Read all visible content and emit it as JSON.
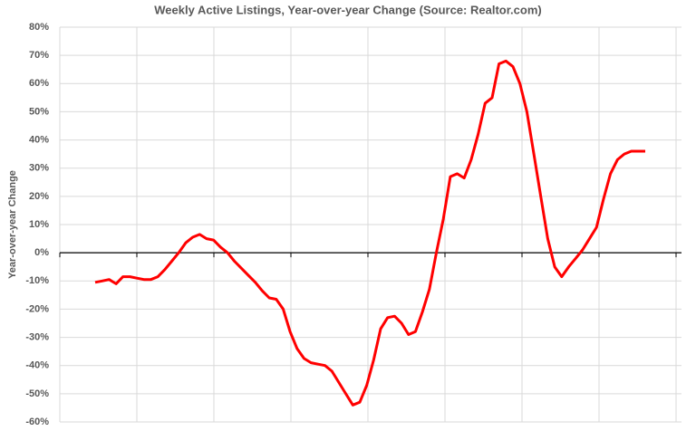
{
  "chart_data": {
    "type": "line",
    "title": "Weekly Active Listings, Year-over-year Change (Source: Realtor.com)",
    "y_label": "Year-over-year Change",
    "series": [
      {
        "color": "#ff0000",
        "values": [
          -10.5,
          -10,
          -9.5,
          -11,
          -8.5,
          -8.5,
          -9,
          -9.5,
          -9.5,
          -8.5,
          -6,
          -3,
          0,
          3.5,
          5.5,
          6.5,
          5,
          4.5,
          2,
          0,
          -3,
          -5.5,
          -8,
          -10.5,
          -13.5,
          -16,
          -16.5,
          -20,
          -28,
          -34,
          -37.5,
          -39,
          -39.5,
          -40,
          -42,
          -46,
          -50,
          -54,
          -53,
          -47,
          -38,
          -27,
          -23,
          -22.5,
          -25,
          -29,
          -28,
          -21,
          -13,
          0,
          12,
          27,
          28,
          26.5,
          33,
          42,
          53,
          55,
          67,
          68,
          66,
          60,
          50,
          35,
          20,
          5,
          -5,
          -8.5,
          -5,
          -2,
          1,
          5,
          9,
          19,
          28,
          33,
          35,
          36,
          36,
          36
        ]
      }
    ],
    "ylim": [
      -60,
      80
    ],
    "yticks": [
      {
        "value": -60,
        "label": "-60%"
      },
      {
        "value": -50,
        "label": "-50%"
      },
      {
        "value": -40,
        "label": "-40%"
      },
      {
        "value": -30,
        "label": "-30%"
      },
      {
        "value": -20,
        "label": "-20%"
      },
      {
        "value": -10,
        "label": "-10%"
      },
      {
        "value": 0,
        "label": "0%"
      },
      {
        "value": 10,
        "label": "10%"
      },
      {
        "value": 20,
        "label": "20%"
      },
      {
        "value": 30,
        "label": "30%"
      },
      {
        "value": 40,
        "label": "40%"
      },
      {
        "value": 50,
        "label": "50%"
      },
      {
        "value": 60,
        "label": "60%"
      },
      {
        "value": 70,
        "label": "70%"
      },
      {
        "value": 80,
        "label": "80%"
      }
    ],
    "grid": true
  }
}
